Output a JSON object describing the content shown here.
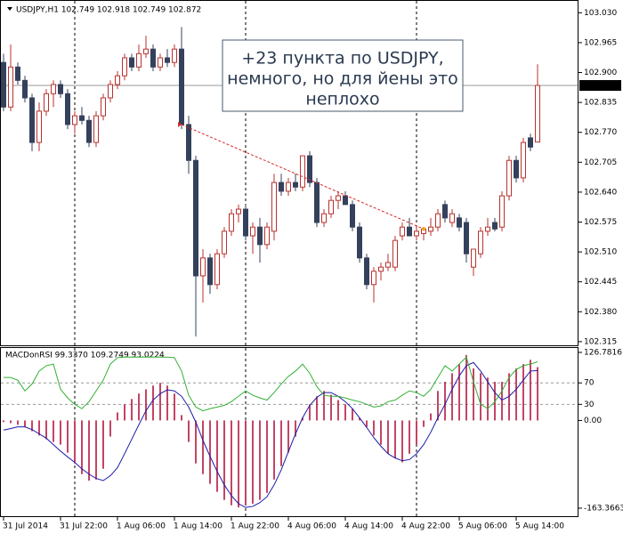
{
  "chart_data": [
    {
      "type": "candlestick",
      "header": "USDJPY,H1  102.749 102.918 102.749 102.872",
      "categories": [
        "31 Jul 2014",
        null,
        null,
        null,
        null,
        null,
        null,
        null,
        "31 Jul 22:00",
        null,
        null,
        null,
        null,
        null,
        null,
        null,
        "1 Aug 06:00",
        null,
        null,
        null,
        null,
        null,
        null,
        null,
        "1 Aug 14:00",
        null,
        null,
        null,
        null,
        null,
        null,
        null,
        "1 Aug 22:00",
        null,
        null,
        null,
        null,
        null,
        null,
        null,
        "4 Aug 06:00",
        null,
        null,
        null,
        null,
        null,
        null,
        null,
        "4 Aug 14:00",
        null,
        null,
        null,
        null,
        null,
        null,
        null,
        "4 Aug 22:00",
        null,
        null,
        null,
        null,
        null,
        null,
        null,
        "5 Aug 06:00",
        null,
        null,
        null,
        null,
        null,
        null,
        null,
        "5 Aug 14:00",
        null,
        null,
        null
      ],
      "open": [
        102.922,
        102.825,
        102.912,
        102.883,
        102.845,
        102.748,
        102.816,
        102.854,
        102.874,
        102.854,
        102.787,
        102.806,
        102.796,
        102.748,
        102.806,
        102.845,
        102.874,
        102.893,
        102.932,
        102.912,
        102.941,
        102.951,
        102.912,
        102.932,
        102.922,
        102.951,
        102.787,
        102.709,
        102.458,
        102.497,
        102.439,
        102.506,
        102.555,
        102.593,
        102.603,
        102.545,
        102.564,
        102.526,
        102.555,
        102.661,
        102.642,
        102.661,
        102.651,
        102.719,
        102.661,
        102.574,
        102.593,
        102.622,
        102.632,
        102.613,
        102.564,
        102.497,
        102.439,
        102.468,
        102.477,
        102.477,
        102.545,
        102.564,
        102.545,
        102.55,
        102.555,
        102.564,
        102.613,
        102.574,
        102.584,
        102.574,
        102.477,
        102.506,
        102.555,
        102.574,
        102.564,
        102.632,
        102.709,
        102.671,
        102.758,
        102.749
      ],
      "high": [
        102.941,
        102.961,
        102.922,
        102.893,
        102.854,
        102.835,
        102.864,
        102.883,
        102.883,
        102.864,
        102.816,
        102.825,
        102.806,
        102.816,
        102.854,
        102.883,
        102.903,
        102.941,
        102.941,
        102.961,
        102.98,
        102.961,
        102.941,
        102.951,
        102.961,
        102.999,
        102.806,
        102.719,
        102.516,
        102.506,
        102.516,
        102.564,
        102.603,
        102.613,
        102.613,
        102.574,
        102.584,
        102.574,
        102.68,
        102.68,
        102.671,
        102.68,
        102.719,
        102.729,
        102.671,
        102.603,
        102.632,
        102.642,
        102.642,
        102.622,
        102.574,
        102.506,
        102.477,
        102.487,
        102.506,
        102.545,
        102.574,
        102.584,
        102.564,
        102.564,
        102.584,
        102.603,
        102.622,
        102.603,
        102.593,
        102.584,
        102.516,
        102.564,
        102.584,
        102.584,
        102.642,
        102.719,
        102.719,
        102.758,
        102.767,
        102.918
      ],
      "low": [
        102.816,
        102.816,
        102.874,
        102.835,
        102.729,
        102.729,
        102.806,
        102.825,
        102.845,
        102.777,
        102.767,
        102.787,
        102.738,
        102.738,
        102.796,
        102.835,
        102.864,
        102.883,
        102.903,
        102.903,
        102.932,
        102.903,
        102.903,
        102.912,
        102.912,
        102.777,
        102.68,
        102.326,
        102.4,
        102.419,
        102.429,
        102.497,
        102.545,
        102.574,
        102.535,
        102.506,
        102.487,
        102.516,
        102.535,
        102.632,
        102.632,
        102.642,
        102.642,
        102.651,
        102.564,
        102.564,
        102.584,
        102.603,
        102.613,
        102.555,
        102.487,
        102.429,
        102.4,
        102.448,
        102.468,
        102.468,
        102.535,
        102.545,
        102.535,
        102.535,
        102.545,
        102.555,
        102.574,
        102.564,
        102.555,
        102.487,
        102.458,
        102.497,
        102.545,
        102.555,
        102.555,
        102.622,
        102.661,
        102.661,
        102.729,
        102.749
      ],
      "close": [
        102.825,
        102.912,
        102.883,
        102.845,
        102.748,
        102.816,
        102.854,
        102.874,
        102.854,
        102.787,
        102.806,
        102.796,
        102.748,
        102.806,
        102.845,
        102.874,
        102.893,
        102.932,
        102.912,
        102.941,
        102.951,
        102.912,
        102.932,
        102.922,
        102.951,
        102.787,
        102.709,
        102.458,
        102.497,
        102.439,
        102.506,
        102.555,
        102.593,
        102.603,
        102.545,
        102.564,
        102.526,
        102.564,
        102.661,
        102.642,
        102.661,
        102.651,
        102.719,
        102.661,
        102.574,
        102.593,
        102.622,
        102.632,
        102.613,
        102.564,
        102.497,
        102.439,
        102.468,
        102.477,
        102.487,
        102.535,
        102.564,
        102.545,
        102.555,
        102.56,
        102.564,
        102.593,
        102.584,
        102.593,
        102.564,
        102.506,
        102.516,
        102.555,
        102.564,
        102.56,
        102.632,
        102.709,
        102.671,
        102.748,
        102.738,
        102.872
      ],
      "up_color": "#b8322f",
      "down_color": "#34415c",
      "ylim": [
        102.307,
        103.05
      ],
      "yticks": [
        {
          "value": 103.03,
          "label": "103.030"
        },
        102.965,
        {
          "value": 102.9,
          "label": "102.900"
        },
        102.835,
        {
          "value": 102.77,
          "label": "102.770"
        },
        102.705,
        {
          "value": 102.64,
          "label": "102.640"
        },
        102.575,
        {
          "value": 102.51,
          "label": "102.510"
        },
        102.445,
        {
          "value": 102.38,
          "label": "102.380"
        },
        102.315
      ],
      "current_price": 102.872,
      "period_separators": [
        10,
        34,
        58
      ],
      "trendline": {
        "color": "#d62728",
        "points": [
          {
            "index": 25,
            "value": 102.787
          },
          {
            "index": 59,
            "value": 102.56
          }
        ]
      },
      "annotation": {
        "lines": [
          "+23 пункта по USDJPY,",
          "немного, но для йены это",
          "неплохо"
        ]
      }
    },
    {
      "type": "indicator",
      "title": "MACDonRSI 99.3370 109.2749 93.0224",
      "ylim": [
        -180,
        135
      ],
      "yticks": [
        126.7816,
        70,
        30,
        {
          "value": 0,
          "label": "0.00"
        },
        -163.3663
      ],
      "levels": [
        70,
        30
      ],
      "series": [
        {
          "kind": "bar",
          "color": "#b5163f",
          "values": [
            -3,
            -5,
            -8,
            -12,
            -20,
            -28,
            -35,
            -40,
            -45,
            -60,
            -80,
            -100,
            -112,
            -110,
            -90,
            -30,
            15,
            30,
            40,
            50,
            58,
            65,
            70,
            65,
            50,
            10,
            -40,
            -80,
            -100,
            -118,
            -133,
            -148,
            -158,
            -162,
            -158,
            -155,
            -148,
            -135,
            -110,
            -85,
            -60,
            -30,
            5,
            30,
            45,
            55,
            48,
            38,
            30,
            22,
            5,
            -12,
            -28,
            -45,
            -62,
            -70,
            -78,
            -62,
            -45,
            -12,
            13,
            55,
            72,
            88,
            105,
            122,
            97,
            88,
            80,
            72,
            72,
            88,
            97,
            105,
            113,
            99.337
          ]
        },
        {
          "kind": "line",
          "color": "#1a1aa8",
          "values": [
            -18,
            -15,
            -12,
            -12,
            -17,
            -25,
            -33,
            -45,
            -57,
            -68,
            -78,
            -90,
            -100,
            -108,
            -112,
            -103,
            -88,
            -62,
            -35,
            -8,
            18,
            38,
            50,
            57,
            55,
            45,
            25,
            -3,
            -37,
            -67,
            -95,
            -120,
            -140,
            -155,
            -162,
            -160,
            -153,
            -142,
            -120,
            -92,
            -58,
            -25,
            5,
            28,
            43,
            52,
            52,
            45,
            35,
            22,
            5,
            -13,
            -32,
            -48,
            -62,
            -70,
            -75,
            -73,
            -62,
            -45,
            -22,
            5,
            30,
            58,
            83,
            102,
            108,
            92,
            72,
            52,
            38,
            45,
            58,
            75,
            92,
            93.0224
          ]
        },
        {
          "kind": "line",
          "color": "#33b033",
          "values": [
            80,
            80,
            75,
            55,
            68,
            92,
            102,
            105,
            58,
            42,
            30,
            22,
            35,
            55,
            75,
            105,
            117,
            118,
            118,
            118,
            118,
            118,
            118,
            118,
            117,
            92,
            47,
            25,
            18,
            22,
            25,
            28,
            35,
            45,
            55,
            47,
            42,
            38,
            52,
            68,
            82,
            92,
            105,
            88,
            63,
            47,
            45,
            45,
            42,
            38,
            35,
            30,
            25,
            27,
            35,
            38,
            47,
            55,
            52,
            45,
            58,
            80,
            102,
            92,
            105,
            118,
            72,
            30,
            22,
            35,
            55,
            80,
            95,
            102,
            105,
            109.2749
          ]
        }
      ]
    }
  ]
}
